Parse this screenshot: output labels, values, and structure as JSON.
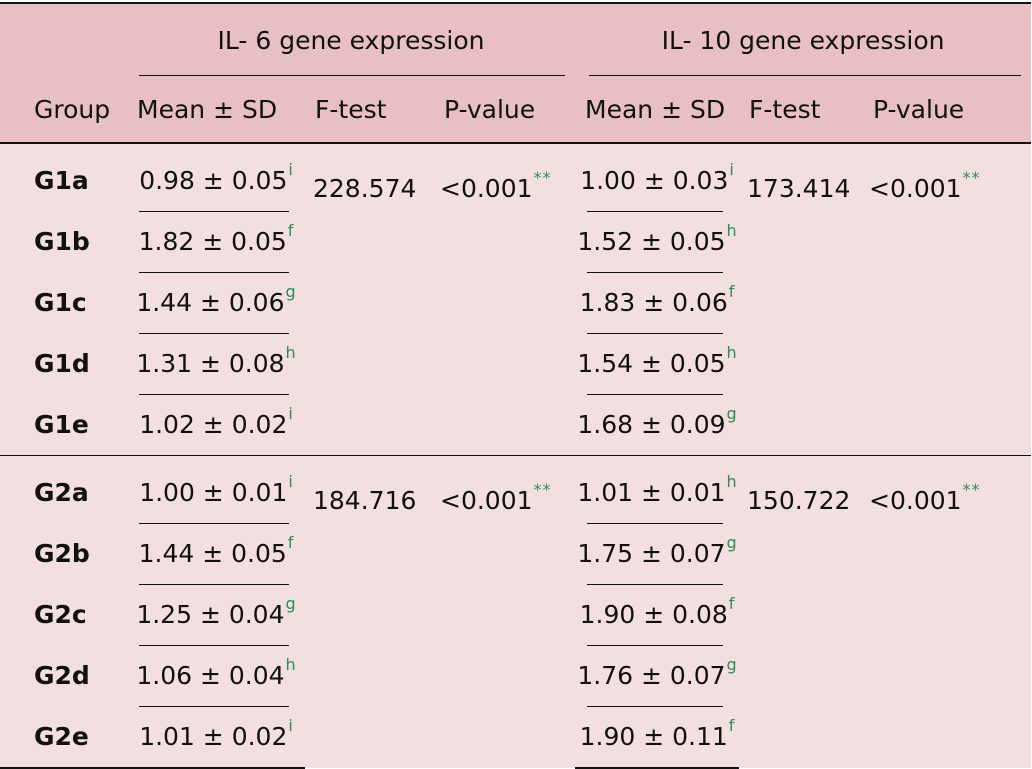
{
  "header": {
    "il6_title": "IL- 6 gene expression",
    "il10_title": "IL- 10 gene expression",
    "group": "Group",
    "mean_sd": "Mean ± SD",
    "f_test": "F-test",
    "p_value": "P-value"
  },
  "groups": [
    {
      "f6": "228.574",
      "p6": "<0.001",
      "p6_sig": "**",
      "f10": "173.414",
      "p10": "<0.001",
      "p10_sig": "**",
      "rows": [
        {
          "name": "G1a",
          "il6": "0.98 ± 0.05",
          "il6_sup": "i",
          "il10": "1.00 ± 0.03",
          "il10_sup": "i"
        },
        {
          "name": "G1b",
          "il6": "1.82 ± 0.05",
          "il6_sup": "f",
          "il10": "1.52 ± 0.05",
          "il10_sup": "h"
        },
        {
          "name": "G1c",
          "il6": "1.44 ± 0.06",
          "il6_sup": "g",
          "il10": "1.83 ± 0.06",
          "il10_sup": "f"
        },
        {
          "name": "G1d",
          "il6": "1.31 ± 0.08",
          "il6_sup": "h",
          "il10": "1.54 ± 0.05",
          "il10_sup": "h"
        },
        {
          "name": "G1e",
          "il6": "1.02 ± 0.02",
          "il6_sup": "i",
          "il10": "1.68 ± 0.09",
          "il10_sup": "g"
        }
      ]
    },
    {
      "f6": "184.716",
      "p6": "<0.001",
      "p6_sig": "**",
      "f10": "150.722",
      "p10": "<0.001",
      "p10_sig": "**",
      "rows": [
        {
          "name": "G2a",
          "il6": "1.00 ± 0.01",
          "il6_sup": "i",
          "il10": "1.01 ± 0.01",
          "il10_sup": "h"
        },
        {
          "name": "G2b",
          "il6": "1.44 ± 0.05",
          "il6_sup": "f",
          "il10": "1.75 ± 0.07",
          "il10_sup": "g"
        },
        {
          "name": "G2c",
          "il6": "1.25 ± 0.04",
          "il6_sup": "g",
          "il10": "1.90 ± 0.08",
          "il10_sup": "f"
        },
        {
          "name": "G2d",
          "il6": "1.06 ± 0.04",
          "il6_sup": "h",
          "il10": "1.76 ± 0.07",
          "il10_sup": "g"
        },
        {
          "name": "G2e",
          "il6": "1.01 ± 0.02",
          "il6_sup": "i",
          "il10": "1.90 ± 0.11",
          "il10_sup": "f"
        }
      ]
    }
  ],
  "colors": {
    "header_bg": "#e8c0c3",
    "body_bg": "#f3dfe0",
    "superscript": "#2e8b57"
  }
}
